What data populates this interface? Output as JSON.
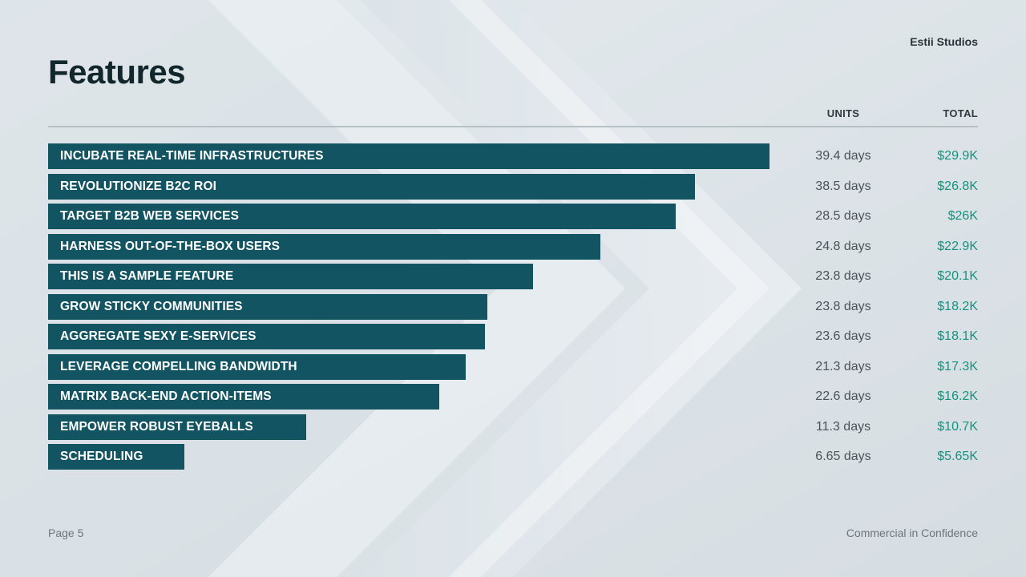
{
  "header": {
    "brand": "Estii Studios",
    "title": "Features"
  },
  "table": {
    "units_header": "UNITS",
    "total_header": "TOTAL"
  },
  "chart_data": {
    "type": "bar",
    "orientation": "horizontal",
    "categories": [
      "Incubate real-time infrastructures",
      "Revolutionize B2C ROI",
      "Target B2B web services",
      "Harness out-of-the-box users",
      "This is a sample feature",
      "Grow sticky communities",
      "Aggregate sexy e-services",
      "Leverage compelling bandwidth",
      "Matrix back-end action-items",
      "Empower robust eyeballs",
      "Scheduling"
    ],
    "values": [
      29.9,
      26.8,
      26.0,
      22.9,
      20.1,
      18.2,
      18.1,
      17.3,
      16.2,
      10.7,
      5.65
    ],
    "units_labels": [
      "39.4 days",
      "38.5 days",
      "28.5 days",
      "24.8 days",
      "23.8 days",
      "23.8 days",
      "23.6 days",
      "21.3 days",
      "22.6 days",
      "11.3 days",
      "6.65 days"
    ],
    "total_labels": [
      "$29.9K",
      "$26.8K",
      "$26K",
      "$22.9K",
      "$20.1K",
      "$18.2K",
      "$18.1K",
      "$17.3K",
      "$16.2K",
      "$10.7K",
      "$5.65K"
    ],
    "bar_color": "#135462",
    "total_color": "#15927e"
  },
  "footer": {
    "page": "Page 5",
    "confidentiality": "Commercial in Confidence"
  }
}
